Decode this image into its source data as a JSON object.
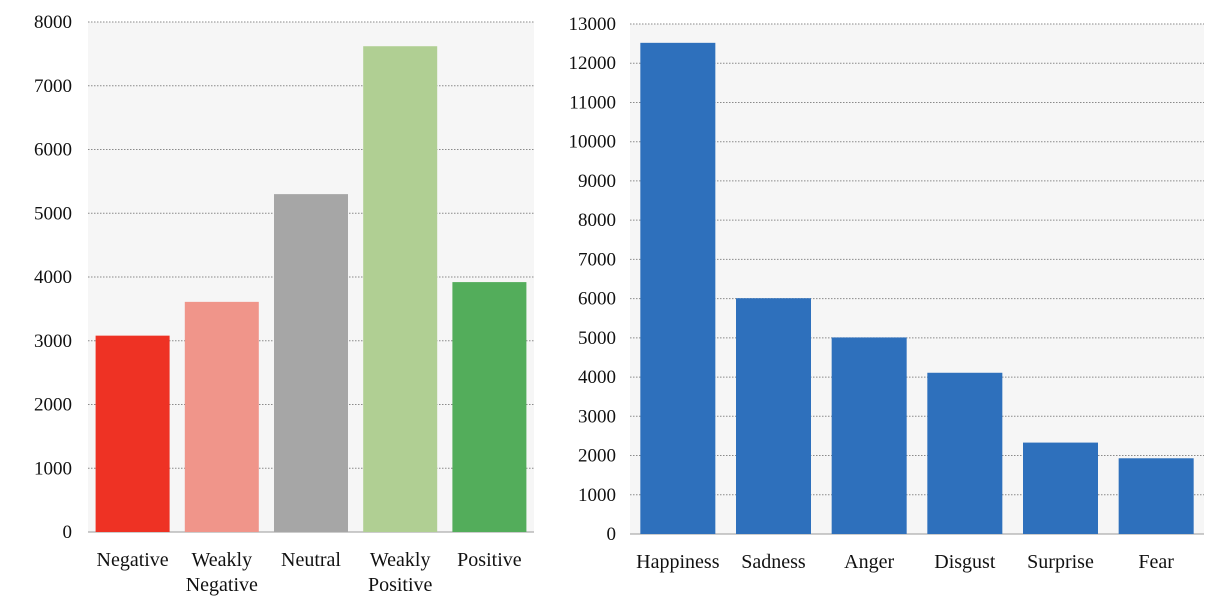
{
  "chart_data": [
    {
      "type": "bar",
      "categories": [
        "Negative",
        "Weakly Negative",
        "Neutral",
        "Weakly Positive",
        "Positive"
      ],
      "category_lines": [
        [
          "Negative"
        ],
        [
          "Weakly",
          "Negative"
        ],
        [
          "Neutral"
        ],
        [
          "Weakly",
          "Positive"
        ],
        [
          "Positive"
        ]
      ],
      "values": [
        3080,
        3610,
        5300,
        7620,
        3920
      ],
      "colors": [
        "#ee3224",
        "#f0958a",
        "#a6a6a6",
        "#b0cf93",
        "#53ad5b"
      ],
      "title": "",
      "xlabel": "",
      "ylabel": "",
      "ylim": [
        0,
        8000
      ],
      "yticks": [
        0,
        1000,
        2000,
        3000,
        4000,
        5000,
        6000,
        7000,
        8000
      ],
      "grid": true
    },
    {
      "type": "bar",
      "categories": [
        "Happiness",
        "Sadness",
        "Anger",
        "Disgust",
        "Surprise",
        "Fear"
      ],
      "category_lines": [
        [
          "Happiness"
        ],
        [
          "Sadness"
        ],
        [
          "Anger"
        ],
        [
          "Disgust"
        ],
        [
          "Surprise"
        ],
        [
          "Fear"
        ]
      ],
      "values": [
        12520,
        6010,
        5010,
        4110,
        2330,
        1930
      ],
      "colors": [
        "#2e70bc",
        "#2e70bc",
        "#2e70bc",
        "#2e70bc",
        "#2e70bc",
        "#2e70bc"
      ],
      "title": "",
      "xlabel": "",
      "ylabel": "",
      "ylim": [
        0,
        13000
      ],
      "yticks": [
        0,
        1000,
        2000,
        3000,
        4000,
        5000,
        6000,
        7000,
        8000,
        9000,
        10000,
        11000,
        12000,
        13000
      ],
      "grid": true
    }
  ]
}
